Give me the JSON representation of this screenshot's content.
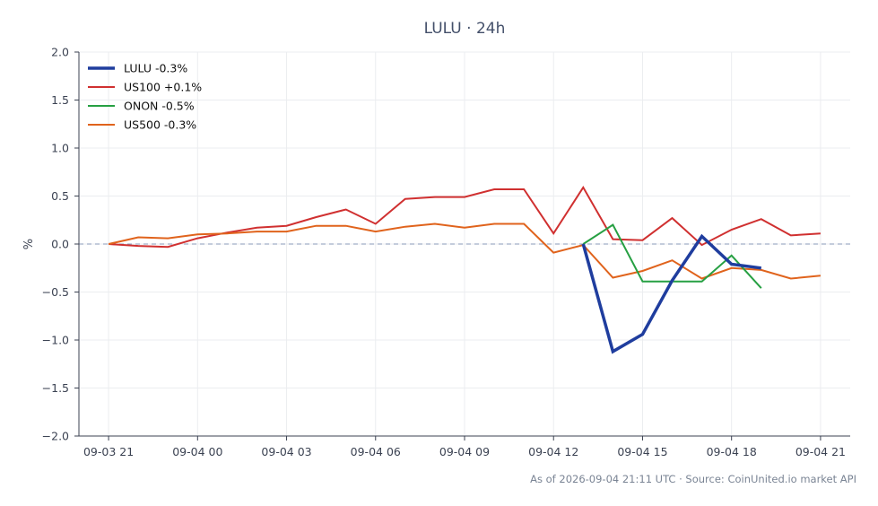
{
  "chart_data": {
    "type": "line",
    "title": "LULU · 24h",
    "xlabel": "",
    "ylabel": "%",
    "ylim": [
      -2.0,
      2.0
    ],
    "y_ticks": [
      2.0,
      1.5,
      1.0,
      0.5,
      0.0,
      -0.5,
      -1.0,
      -1.5,
      -2.0
    ],
    "y_tick_labels": [
      "2.0",
      "1.5",
      "1.0",
      "0.5",
      "0.0",
      "−0.5",
      "−1.0",
      "−1.5",
      "−2.0"
    ],
    "x_range": [
      "2026-09-03 20:00",
      "2026-09-04 22:00"
    ],
    "x_ticks": [
      "2026-09-03 21:00",
      "2026-09-04 00:00",
      "2026-09-04 03:00",
      "2026-09-04 06:00",
      "2026-09-04 09:00",
      "2026-09-04 12:00",
      "2026-09-04 15:00",
      "2026-09-04 18:00",
      "2026-09-04 21:00"
    ],
    "x_tick_labels": [
      "09-03 21",
      "09-04 00",
      "09-04 03",
      "09-04 06",
      "09-04 09",
      "09-04 12",
      "09-04 15",
      "09-04 18",
      "09-04 21"
    ],
    "zero_line": true,
    "grid": true,
    "legend_position": "top-left",
    "series": [
      {
        "name": "LULU -0.3%",
        "color": "#1f3d9e",
        "width": 3.5,
        "x": [
          "2026-09-04 13:00",
          "2026-09-04 14:00",
          "2026-09-04 15:00",
          "2026-09-04 16:00",
          "2026-09-04 17:00",
          "2026-09-04 18:00",
          "2026-09-04 19:00"
        ],
        "y": [
          0.0,
          -1.12,
          -0.94,
          -0.38,
          0.08,
          -0.21,
          -0.25
        ]
      },
      {
        "name": "US100 +0.1%",
        "color": "#d03030",
        "width": 2,
        "x": [
          "2026-09-03 21:00",
          "2026-09-03 22:00",
          "2026-09-03 23:00",
          "2026-09-04 00:00",
          "2026-09-04 01:00",
          "2026-09-04 02:00",
          "2026-09-04 03:00",
          "2026-09-04 04:00",
          "2026-09-04 05:00",
          "2026-09-04 06:00",
          "2026-09-04 07:00",
          "2026-09-04 08:00",
          "2026-09-04 09:00",
          "2026-09-04 10:00",
          "2026-09-04 11:00",
          "2026-09-04 12:00",
          "2026-09-04 13:00",
          "2026-09-04 14:00",
          "2026-09-04 15:00",
          "2026-09-04 16:00",
          "2026-09-04 17:00",
          "2026-09-04 18:00",
          "2026-09-04 19:00",
          "2026-09-04 20:00",
          "2026-09-04 21:00"
        ],
        "y": [
          0.0,
          -0.02,
          -0.03,
          0.06,
          0.12,
          0.17,
          0.19,
          0.28,
          0.36,
          0.21,
          0.47,
          0.49,
          0.49,
          0.57,
          0.57,
          0.11,
          0.59,
          0.05,
          0.04,
          0.27,
          -0.01,
          0.15,
          0.26,
          0.09,
          0.11
        ]
      },
      {
        "name": "ONON -0.5%",
        "color": "#27a043",
        "width": 2,
        "x": [
          "2026-09-04 13:00",
          "2026-09-04 14:00",
          "2026-09-04 15:00",
          "2026-09-04 16:00",
          "2026-09-04 17:00",
          "2026-09-04 18:00",
          "2026-09-04 19:00"
        ],
        "y": [
          0.0,
          0.2,
          -0.39,
          -0.39,
          -0.39,
          -0.12,
          -0.46
        ]
      },
      {
        "name": "US500 -0.3%",
        "color": "#e0631c",
        "width": 2,
        "x": [
          "2026-09-03 21:00",
          "2026-09-03 22:00",
          "2026-09-03 23:00",
          "2026-09-04 00:00",
          "2026-09-04 01:00",
          "2026-09-04 02:00",
          "2026-09-04 03:00",
          "2026-09-04 04:00",
          "2026-09-04 05:00",
          "2026-09-04 06:00",
          "2026-09-04 07:00",
          "2026-09-04 08:00",
          "2026-09-04 09:00",
          "2026-09-04 10:00",
          "2026-09-04 11:00",
          "2026-09-04 12:00",
          "2026-09-04 13:00",
          "2026-09-04 14:00",
          "2026-09-04 15:00",
          "2026-09-04 16:00",
          "2026-09-04 17:00",
          "2026-09-04 18:00",
          "2026-09-04 19:00",
          "2026-09-04 20:00",
          "2026-09-04 21:00"
        ],
        "y": [
          0.0,
          0.07,
          0.06,
          0.1,
          0.11,
          0.13,
          0.13,
          0.19,
          0.19,
          0.13,
          0.18,
          0.21,
          0.17,
          0.21,
          0.21,
          -0.09,
          -0.01,
          -0.35,
          -0.28,
          -0.17,
          -0.36,
          -0.25,
          -0.27,
          -0.36,
          -0.33
        ]
      }
    ]
  },
  "footer": "As of 2026-09-04 21:11 UTC · Source: CoinUnited.io market API"
}
